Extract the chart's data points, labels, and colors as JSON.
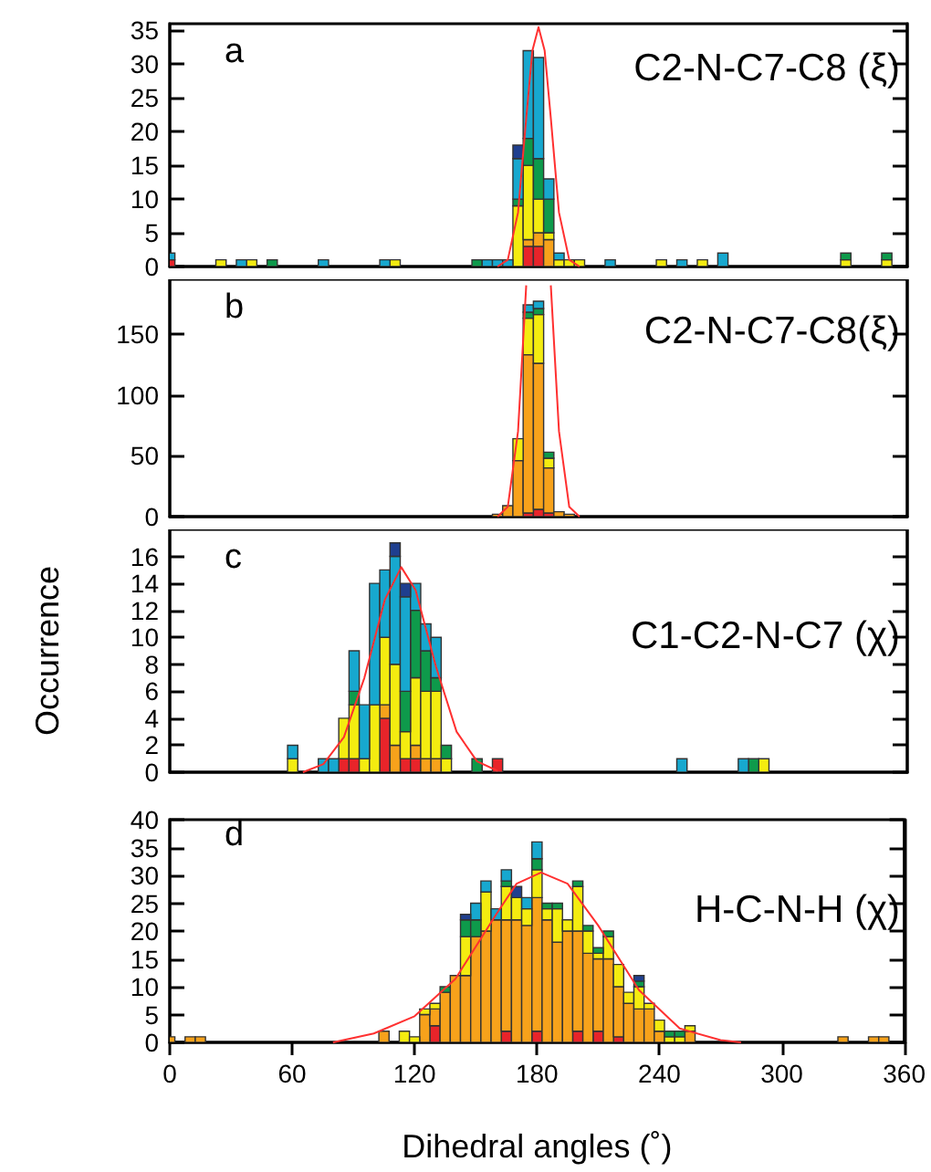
{
  "chart_data": [
    {
      "type": "bar",
      "stacked": true,
      "marker": "none",
      "annotations": [
        "a",
        "C2-N-C7-C8 (ξ)"
      ],
      "xlim": [
        0,
        360
      ],
      "xticks": [
        0,
        60,
        120,
        180,
        240,
        300,
        360
      ],
      "ylim": [
        0,
        36
      ],
      "yticks": [
        0,
        5,
        10,
        15,
        20,
        25,
        30,
        35
      ],
      "tick_labels": "y",
      "x": [
        0,
        25,
        35,
        40,
        50,
        75,
        105,
        110,
        150,
        155,
        160,
        165,
        170,
        175,
        180,
        185,
        190,
        195,
        200,
        215,
        240,
        250,
        260,
        270,
        330,
        350
      ],
      "series": [
        {
          "color": "#e8242a",
          "values": [
            1,
            null,
            null,
            null,
            null,
            null,
            null,
            null,
            null,
            null,
            null,
            null,
            null,
            3,
            3,
            null,
            null,
            null,
            null,
            null,
            null,
            null,
            null,
            null,
            null,
            null
          ]
        },
        {
          "color": "#f7a21b",
          "values": [
            null,
            null,
            null,
            null,
            null,
            null,
            null,
            null,
            null,
            null,
            null,
            null,
            null,
            1,
            2,
            4,
            null,
            null,
            null,
            null,
            null,
            null,
            null,
            null,
            null,
            null
          ]
        },
        {
          "color": "#f4ec10",
          "values": [
            null,
            1,
            null,
            1,
            null,
            null,
            null,
            1,
            null,
            null,
            null,
            null,
            9,
            11,
            5,
            1,
            1,
            1,
            1,
            null,
            1,
            null,
            1,
            null,
            1,
            1
          ]
        },
        {
          "color": "#0e9a4b",
          "values": [
            null,
            null,
            null,
            null,
            1,
            null,
            null,
            null,
            1,
            null,
            null,
            null,
            1,
            4,
            6,
            5,
            null,
            null,
            null,
            null,
            null,
            null,
            null,
            null,
            1,
            1
          ]
        },
        {
          "color": "#17a8cf",
          "values": [
            1,
            null,
            1,
            null,
            null,
            1,
            1,
            null,
            null,
            1,
            1,
            1,
            6,
            13,
            15,
            3,
            1,
            null,
            null,
            1,
            null,
            1,
            null,
            2,
            null,
            null
          ]
        },
        {
          "color": "#1f3f8f",
          "values": [
            null,
            null,
            null,
            null,
            null,
            null,
            null,
            null,
            null,
            null,
            null,
            null,
            2,
            null,
            null,
            null,
            null,
            null,
            null,
            null,
            null,
            null,
            null,
            null,
            null,
            null
          ]
        },
        {
          "type": "line",
          "color": "#ff3030",
          "x": [
            160,
            165,
            170,
            174,
            177,
            180,
            183,
            186,
            190,
            195,
            200
          ],
          "values": [
            0,
            1,
            8,
            22,
            32,
            35.5,
            32,
            22,
            8,
            1,
            0
          ]
        }
      ]
    },
    {
      "type": "bar",
      "stacked": true,
      "marker": "none",
      "annotations": [
        "b",
        "C2-N-C7-C8(ξ)"
      ],
      "xlim": [
        0,
        360
      ],
      "xticks": [
        0,
        60,
        120,
        180,
        240,
        300,
        360
      ],
      "ylim": [
        0,
        195
      ],
      "yticks": [
        0,
        50,
        100,
        150
      ],
      "tick_labels": "y",
      "x": [
        160,
        165,
        170,
        175,
        180,
        185,
        190,
        195
      ],
      "series": [
        {
          "color": "#e8242a",
          "values": [
            null,
            null,
            null,
            3,
            6,
            3,
            null,
            null
          ]
        },
        {
          "color": "#f7a21b",
          "values": [
            2,
            9,
            46,
            130,
            120,
            37,
            4,
            2
          ]
        },
        {
          "color": "#f4ec10",
          "values": [
            null,
            null,
            18,
            30,
            40,
            8,
            null,
            null
          ]
        },
        {
          "color": "#0e9a4b",
          "values": [
            null,
            null,
            null,
            5,
            5,
            5,
            null,
            null
          ]
        },
        {
          "color": "#17a8cf",
          "values": [
            null,
            null,
            null,
            6,
            6,
            null,
            null,
            null
          ]
        },
        {
          "type": "line",
          "color": "#ff3030",
          "x": [
            160,
            165,
            170,
            174,
            180,
            186,
            190,
            195,
            200
          ],
          "values": [
            0,
            8,
            70,
            190,
            null,
            190,
            70,
            8,
            0
          ]
        }
      ]
    },
    {
      "type": "bar",
      "stacked": true,
      "marker": "none",
      "annotations": [
        "c",
        "C1-C2-N-C7 (χ)"
      ],
      "ylabel": "Occurrence",
      "xlim": [
        0,
        360
      ],
      "xticks": [
        0,
        60,
        120,
        180,
        240,
        300,
        360
      ],
      "ylim": [
        0,
        18
      ],
      "yticks": [
        0,
        2,
        4,
        6,
        8,
        10,
        12,
        14,
        16
      ],
      "tick_labels": "y",
      "x": [
        60,
        75,
        80,
        85,
        90,
        95,
        100,
        105,
        110,
        115,
        120,
        125,
        130,
        135,
        150,
        160,
        250,
        280,
        285,
        290
      ],
      "series": [
        {
          "color": "#e8242a",
          "values": [
            null,
            null,
            null,
            1,
            1,
            null,
            null,
            4,
            null,
            1,
            1,
            null,
            null,
            null,
            null,
            1,
            null,
            null,
            null,
            null
          ]
        },
        {
          "color": "#f7a21b",
          "values": [
            null,
            null,
            null,
            null,
            null,
            null,
            null,
            1,
            2,
            null,
            1,
            1,
            1,
            null,
            null,
            null,
            null,
            null,
            null,
            null
          ]
        },
        {
          "color": "#f4ec10",
          "values": [
            1,
            null,
            null,
            3,
            4,
            1,
            5,
            5,
            6,
            2,
            5,
            5,
            5,
            1,
            null,
            null,
            null,
            null,
            null,
            1
          ]
        },
        {
          "color": "#0e9a4b",
          "values": [
            null,
            null,
            null,
            null,
            1,
            null,
            null,
            null,
            null,
            3,
            5,
            3,
            1,
            1,
            1,
            null,
            null,
            null,
            1,
            null
          ]
        },
        {
          "color": "#17a8cf",
          "values": [
            1,
            1,
            1,
            null,
            3,
            4,
            9,
            5,
            8,
            7,
            2,
            2,
            3,
            null,
            null,
            null,
            1,
            1,
            null,
            null
          ]
        },
        {
          "color": "#1f3f8f",
          "values": [
            null,
            null,
            null,
            null,
            null,
            null,
            null,
            null,
            1,
            1,
            null,
            null,
            null,
            null,
            null,
            null,
            null,
            null,
            null,
            null
          ]
        },
        {
          "type": "line",
          "color": "#ff3030",
          "x": [
            65,
            75,
            85,
            95,
            105,
            113,
            120,
            130,
            140,
            150,
            160
          ],
          "values": [
            0,
            0.6,
            2.6,
            7,
            12.8,
            15.2,
            13.5,
            7.8,
            3,
            0.8,
            0.1
          ]
        }
      ]
    },
    {
      "type": "bar",
      "stacked": true,
      "marker": "none",
      "annotations": [
        "d",
        "H-C-N-H (χ)"
      ],
      "xlabel": "Dihedral angles (˚)",
      "xlim": [
        0,
        360
      ],
      "xticks": [
        0,
        60,
        120,
        180,
        240,
        300,
        360
      ],
      "ylim": [
        0,
        40
      ],
      "yticks": [
        0,
        5,
        10,
        15,
        20,
        25,
        30,
        35,
        40
      ],
      "x": [
        0,
        10,
        15,
        105,
        115,
        120,
        125,
        130,
        135,
        140,
        145,
        150,
        155,
        160,
        165,
        170,
        175,
        180,
        185,
        190,
        195,
        200,
        205,
        210,
        215,
        220,
        225,
        230,
        235,
        240,
        245,
        250,
        255,
        330,
        345,
        350
      ],
      "series": [
        {
          "color": "#e8242a",
          "values": [
            null,
            null,
            null,
            null,
            null,
            null,
            null,
            3,
            null,
            null,
            null,
            null,
            null,
            null,
            2,
            null,
            null,
            2,
            null,
            null,
            null,
            2,
            null,
            2,
            null,
            1,
            null,
            null,
            null,
            null,
            null,
            null,
            null,
            null,
            null,
            null
          ]
        },
        {
          "color": "#f7a21b",
          "values": [
            1,
            1,
            1,
            2,
            null,
            null,
            5,
            3,
            9,
            12,
            12,
            19,
            20,
            22,
            20,
            22,
            21,
            24,
            22,
            18,
            20,
            18,
            16,
            13,
            15,
            9,
            7,
            6,
            6,
            2,
            null,
            null,
            2,
            1,
            1,
            1
          ]
        },
        {
          "color": "#f4ec10",
          "values": [
            null,
            null,
            null,
            null,
            2,
            1,
            1,
            1,
            null,
            null,
            7,
            null,
            7,
            null,
            6,
            4,
            3,
            5,
            2,
            6,
            2,
            8,
            4,
            1,
            4,
            4,
            2,
            4,
            1,
            2,
            1,
            1,
            1,
            null,
            null,
            null
          ]
        },
        {
          "color": "#0e9a4b",
          "values": [
            null,
            null,
            null,
            null,
            null,
            null,
            null,
            null,
            1,
            null,
            3,
            3,
            null,
            null,
            1,
            null,
            null,
            2,
            1,
            1,
            null,
            1,
            1,
            1,
            1,
            null,
            null,
            1,
            null,
            null,
            1,
            1,
            null,
            null,
            null,
            null
          ]
        },
        {
          "color": "#17a8cf",
          "values": [
            null,
            null,
            null,
            null,
            null,
            null,
            null,
            null,
            null,
            null,
            null,
            3,
            2,
            2,
            2,
            null,
            2,
            3,
            null,
            null,
            null,
            null,
            null,
            null,
            null,
            null,
            null,
            null,
            null,
            null,
            null,
            null,
            null,
            null,
            null,
            null
          ]
        },
        {
          "color": "#1f3f8f",
          "values": [
            null,
            null,
            null,
            null,
            null,
            null,
            null,
            null,
            null,
            null,
            1,
            null,
            null,
            null,
            null,
            2,
            null,
            null,
            null,
            null,
            null,
            null,
            null,
            null,
            null,
            null,
            null,
            1,
            null,
            null,
            null,
            null,
            null,
            null,
            null,
            null
          ]
        },
        {
          "type": "line",
          "color": "#ff3030",
          "x": [
            80,
            100,
            120,
            140,
            160,
            170,
            182,
            195,
            210,
            230,
            250,
            270,
            280
          ],
          "values": [
            0,
            1.6,
            4.7,
            11.4,
            23,
            28.5,
            30.5,
            28.5,
            21,
            9.4,
            2.5,
            0.4,
            0
          ]
        }
      ]
    }
  ]
}
